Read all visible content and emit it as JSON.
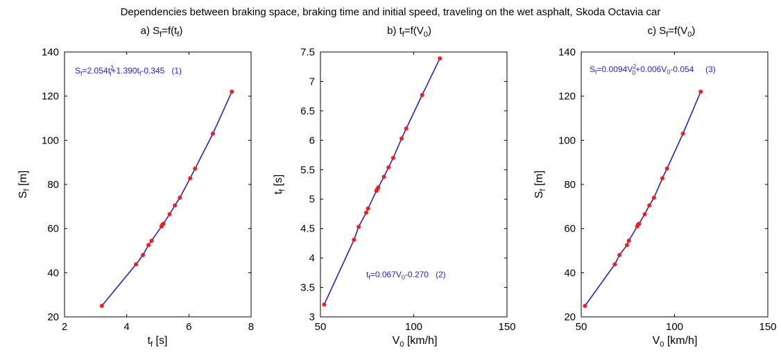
{
  "figure": {
    "suptitle": "Dependencies between braking space, braking time and initial speed, traveling on the wet asphalt, Skoda Octavia car"
  },
  "colors": {
    "line": "#1f1fe0",
    "marker": "#ff1a1a",
    "equation": "#1f1fe0"
  },
  "chart_data": [
    {
      "type": "line",
      "title": "a) S_f=f(t_f)",
      "title_parts": {
        "prefix": "a) S",
        "sub1": "f",
        "mid": "=f(t",
        "sub2": "f",
        "suffix": ")"
      },
      "xlabel": "t_f [s]",
      "xlabel_parts": {
        "base": "t",
        "sub": "f",
        "rest": " [s]"
      },
      "ylabel": "S_f [m]",
      "ylabel_parts": {
        "base": "S",
        "sub": "f",
        "rest": " [m]"
      },
      "xlim": [
        2,
        8
      ],
      "ylim": [
        20,
        140
      ],
      "xticks": [
        2,
        4,
        6,
        8
      ],
      "yticks": [
        20,
        40,
        60,
        80,
        100,
        120,
        140
      ],
      "grid": false,
      "equation": "S_f=2.054t_f^2+1.390t_f-0.345   (1)",
      "x": [
        3.2,
        4.3,
        4.52,
        4.7,
        4.8,
        5.12,
        5.15,
        5.18,
        5.38,
        5.55,
        5.71,
        6.04,
        6.2,
        6.77,
        7.38
      ],
      "y": [
        25.0,
        43.8,
        48.0,
        52.5,
        54.5,
        61.0,
        61.8,
        62.2,
        66.5,
        70.5,
        74.0,
        82.8,
        87.2,
        103.0,
        122.0
      ]
    },
    {
      "type": "line",
      "title": "b) t_f=f(V_0)",
      "title_parts": {
        "prefix": "b) t",
        "sub1": "f",
        "mid": "=f(V",
        "sub2": "0",
        "suffix": ")"
      },
      "xlabel": "V_0 [km/h]",
      "xlabel_parts": {
        "base": "V",
        "sub": "0",
        "rest": " [km/h]"
      },
      "ylabel": "t_f [s]",
      "ylabel_parts": {
        "base": "t",
        "sub": "f",
        "rest": " [s]"
      },
      "xlim": [
        50,
        150
      ],
      "ylim": [
        3,
        7.5
      ],
      "xticks": [
        50,
        100,
        150
      ],
      "yticks": [
        3,
        3.5,
        4,
        4.5,
        5,
        5.5,
        6,
        6.5,
        7,
        7.5
      ],
      "grid": false,
      "equation": "t_f=0.067V_0-0.270   (2)",
      "x": [
        52,
        68,
        70.5,
        74.5,
        75.5,
        80,
        80.5,
        81,
        84,
        86.5,
        89,
        93.5,
        96,
        104.5,
        114
      ],
      "y": [
        3.21,
        4.31,
        4.53,
        4.77,
        4.84,
        5.14,
        5.17,
        5.2,
        5.38,
        5.54,
        5.7,
        6.03,
        6.2,
        6.77,
        7.39
      ]
    },
    {
      "type": "line",
      "title": "c) S_f=f(V_0)",
      "title_parts": {
        "prefix": "c) S",
        "sub1": "f",
        "mid": "=f(V",
        "sub2": "0",
        "suffix": ")"
      },
      "xlabel": "V_0 [km/h]",
      "xlabel_parts": {
        "base": "V",
        "sub": "0",
        "rest": " [km/h]"
      },
      "ylabel": "S_f [m]",
      "ylabel_parts": {
        "base": "S",
        "sub": "f",
        "rest": " [m]"
      },
      "xlim": [
        50,
        150
      ],
      "ylim": [
        20,
        140
      ],
      "xticks": [
        50,
        100,
        150
      ],
      "yticks": [
        20,
        40,
        60,
        80,
        100,
        120,
        140
      ],
      "grid": false,
      "equation": "S_f=0.0094V_0^2+0.006V_0-0.054   (3)",
      "x": [
        52,
        68,
        70.5,
        74.5,
        75.5,
        80,
        80.5,
        81,
        84,
        86.5,
        89,
        93.5,
        96,
        104.5,
        114
      ],
      "y": [
        25.0,
        43.8,
        48.0,
        52.5,
        54.5,
        61.0,
        61.8,
        62.2,
        66.5,
        70.5,
        74.0,
        82.8,
        87.2,
        103.0,
        122.0
      ]
    }
  ]
}
